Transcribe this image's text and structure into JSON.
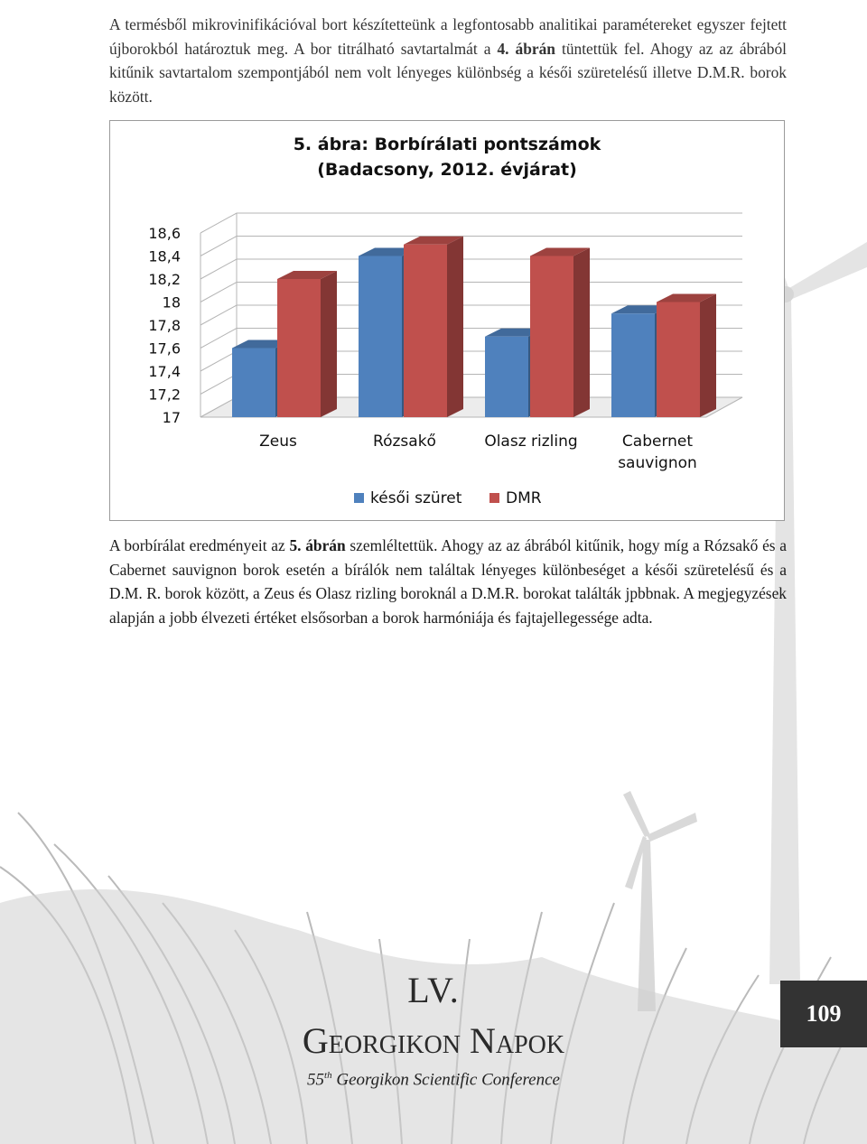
{
  "paragraphs": {
    "top": {
      "part1": "A termésből mikrovinifikációval bort készítetteünk a legfontosabb analitikai paramétereket egyszer fejtett újborokból határoztuk meg. A bor titrálható savtartalmát a ",
      "bold": "4. ábrán",
      "part2": " tüntettük fel. Ahogy az az ábrából kitűnik savtartalom szempontjából nem volt lényeges különbség a késői szüretelésű illetve D.M.R. borok között."
    },
    "bottom": {
      "part1": "A borbírálat eredményeit az ",
      "bold": "5. ábrán",
      "part2": " szemléltettük. Ahogy az az ábrából kitűnik, hogy míg a Rózsakő és a Cabernet sauvignon borok esetén a bírálók nem találtak lényeges különbeséget a késői szüretelésű és a D.M. R. borok között, a Zeus és Olasz rizling boroknál a D.M.R. borokat találták jpbbnak. A megjegyzések alapján a jobb élvezeti értéket elsősorban a borok harmóniája és fajtajellegessége adta."
    }
  },
  "chart_data": {
    "type": "bar",
    "title_line1": "5. ábra: Borbírálati pontszámok",
    "title_line2": "(Badacsony, 2012. évjárat)",
    "categories": [
      "Zeus",
      "Rózsakő",
      "Olasz rizling",
      "Cabernet sauvignon"
    ],
    "series": [
      {
        "name": "késői szüret",
        "values": [
          17.6,
          18.4,
          17.7,
          17.9
        ],
        "color": "#4f81bd"
      },
      {
        "name": "DMR",
        "values": [
          18.2,
          18.5,
          18.4,
          18.0
        ],
        "color": "#c0504d"
      }
    ],
    "ylim": [
      17,
      18.6
    ],
    "ticks": [
      "17",
      "17,2",
      "17,4",
      "17,6",
      "17,8",
      "18",
      "18,2",
      "18,4",
      "18,6"
    ],
    "legend_placement": "bottom",
    "grid": true,
    "style": "3d-column"
  },
  "footer": {
    "roman": "LV.",
    "name": "Georgikon Napok",
    "sub_num": "55",
    "sub_sup": "th",
    "sub_text": " Georgikon Scientific Conference",
    "page_number": "109"
  }
}
